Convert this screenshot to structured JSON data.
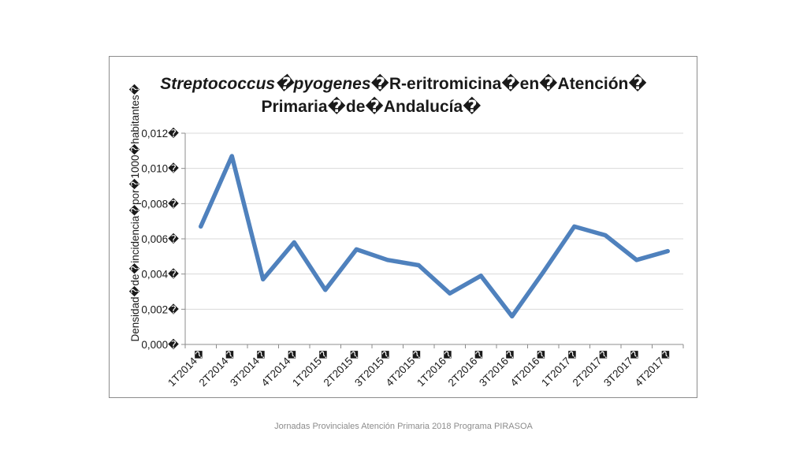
{
  "footer": {
    "text": "Jornadas Provinciales Atención Primaria 2018  Programa PIRASOA"
  },
  "chart_data": {
    "type": "line",
    "title_italic": "Streptococcus�pyogenes",
    "title_rest_line1": "�R-eritromicina�en�Atención�",
    "title_line2": "Primaria�de�Andalucía�",
    "ylabel": "Densidad�de�incidencia�por�1000�habitantes�",
    "xlabel": "",
    "categories": [
      "1T2014�",
      "2T2014�",
      "3T2014�",
      "4T2014�",
      "1T2015�",
      "2T2015�",
      "3T2015�",
      "4T2015�",
      "1T2016�",
      "2T2016�",
      "3T2016�",
      "4T2016�",
      "1T2017�",
      "2T2017�",
      "3T2017�",
      "4T2017�"
    ],
    "series": [
      {
        "values": [
          0.0067,
          0.0107,
          0.0037,
          0.0058,
          0.0031,
          0.0054,
          0.0048,
          0.0045,
          0.0029,
          0.0039,
          0.0016,
          0.0041,
          0.0067,
          0.0062,
          0.0048,
          0.0053
        ]
      }
    ],
    "yticks": [
      "0,000�",
      "0,002�",
      "0,004�",
      "0,006�",
      "0,008�",
      "0,010�",
      "0,012�"
    ],
    "ylim": [
      0,
      0.012
    ],
    "grid": true,
    "line_color": "#4f81bd",
    "grid_color": "#d9d9d9",
    "axis_color": "#8c8c8c"
  }
}
